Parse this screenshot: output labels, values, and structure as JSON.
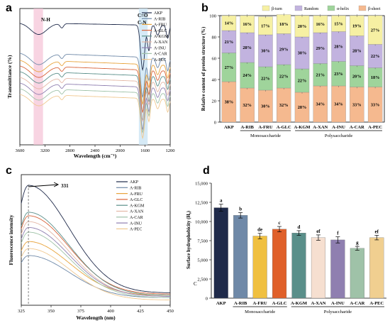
{
  "panels": {
    "a": "a",
    "b": "b",
    "c": "c",
    "d": "d"
  },
  "chart_data": [
    {
      "type": "line",
      "panel": "a",
      "xlabel": "Wavelength (cm⁻¹)",
      "ylabel": "Transmittance (%)",
      "xlim": [
        3600,
        1200
      ],
      "x_ticks": [
        "3600",
        "3200",
        "2800",
        "2400",
        "2000",
        "1600",
        "1200"
      ],
      "annotations": {
        "nh": "N-H",
        "co": "C=O",
        "cn": "C-N"
      },
      "series": [
        {
          "name": "AKP",
          "color": "#1f2a4a"
        },
        {
          "name": "A-RIB",
          "color": "#6f89a8"
        },
        {
          "name": "A-FRU",
          "color": "#e8a43c"
        },
        {
          "name": "A-GLC",
          "color": "#d8643a"
        },
        {
          "name": "A-KGM",
          "color": "#5a8f8a"
        },
        {
          "name": "A-XAN",
          "color": "#e4b8a6"
        },
        {
          "name": "A-INU",
          "color": "#8f7fb0"
        },
        {
          "name": "A-CAR",
          "color": "#9fc2a8"
        },
        {
          "name": "A-PEC",
          "color": "#f0c890"
        }
      ]
    },
    {
      "type": "bar",
      "panel": "b",
      "stacked": true,
      "ylabel": "Relative content of protein structure (%)",
      "ylim": [
        0,
        100
      ],
      "y_ticks": [
        "0",
        "20",
        "40",
        "60",
        "80",
        "100"
      ],
      "categories": [
        "AKP",
        "A-RIB",
        "A-FRU",
        "A-GLC",
        "A-KGM",
        "A-XAN",
        "A-INU",
        "A-CAR",
        "A-PEC"
      ],
      "groups": [
        {
          "label": "Monosaccharide",
          "from": 1,
          "to": 3
        },
        {
          "label": "Polysaccharide",
          "from": 4,
          "to": 8
        }
      ],
      "series": [
        {
          "name": "β-sheet",
          "color": "#f5b98f",
          "values": [
            38,
            32,
            30,
            32,
            28,
            34,
            34,
            33,
            33
          ],
          "labels": [
            "38%",
            "32%",
            "30%",
            "32%",
            "28%",
            "34%",
            "34%",
            "33%",
            "33%"
          ]
        },
        {
          "name": "α-helix",
          "color": "#9fd49b",
          "values": [
            27,
            24,
            22,
            22,
            22,
            21,
            23,
            20,
            18
          ],
          "labels": [
            "27%",
            "24%",
            "22%",
            "22%",
            "22%",
            "21%",
            "23%",
            "20%",
            "18%"
          ]
        },
        {
          "name": "Random",
          "color": "#c2b3df",
          "values": [
            21,
            28,
            30,
            29,
            30,
            29,
            28,
            28,
            22
          ],
          "labels": [
            "21%",
            "28%",
            "30%",
            "29%",
            "30%",
            "29%",
            "28%",
            "28%",
            "22%"
          ]
        },
        {
          "name": "β-turn",
          "color": "#f6f0a3",
          "values": [
            14,
            16,
            17,
            18,
            20,
            16,
            15,
            19,
            27
          ],
          "labels": [
            "14%",
            "16%",
            "17%",
            "18%",
            "20%",
            "16%",
            "15%",
            "19%",
            "27%"
          ]
        }
      ],
      "legend_order": [
        "β-turn",
        "Random",
        "α-helix",
        "β-sheet"
      ]
    },
    {
      "type": "line",
      "panel": "c",
      "xlabel": "Wavelength (nm)",
      "ylabel": "Fluorescence intensity",
      "xlim": [
        325,
        450
      ],
      "x_ticks": [
        "325",
        "350",
        "375",
        "400",
        "425",
        "450"
      ],
      "peak_label": "331",
      "peak_x": 331,
      "series": [
        {
          "name": "AKP",
          "color": "#1f2a4a",
          "peak": 1.0,
          "tail": 0.08
        },
        {
          "name": "A-RIB",
          "color": "#6f89a8",
          "peak": 0.4,
          "tail": 0.04
        },
        {
          "name": "A-FRU",
          "color": "#e8a43c",
          "peak": 0.52,
          "tail": 0.06
        },
        {
          "name": "A-GLC",
          "color": "#d8643a",
          "peak": 0.74,
          "tail": 0.07
        },
        {
          "name": "A-KGM",
          "color": "#5a8f8a",
          "peak": 0.77,
          "tail": 0.06
        },
        {
          "name": "A-XAN",
          "color": "#e4b8a6",
          "peak": 0.69,
          "tail": 0.05
        },
        {
          "name": "A-CAR",
          "color": "#9fc2a8",
          "peak": 0.6,
          "tail": 0.04
        },
        {
          "name": "A-INU",
          "color": "#8f7fb0",
          "peak": 0.64,
          "tail": 0.05
        },
        {
          "name": "A-PEC",
          "color": "#f0c890",
          "peak": 0.46,
          "tail": 0.02
        }
      ]
    },
    {
      "type": "bar",
      "panel": "d",
      "ylabel": "Surface hydrophobicity (H₀)",
      "ylim": [
        0,
        15000
      ],
      "y_ticks": [
        "0",
        "2,500",
        "5,000",
        "7,500",
        "10,000",
        "12,500",
        "15,000"
      ],
      "categories": [
        "AKP",
        "A-RIB",
        "A-FRU",
        "A-GLC",
        "A-KGM",
        "A-XAN",
        "A-INU",
        "A-CAR",
        "A-PEC"
      ],
      "values": [
        11800,
        10800,
        8100,
        9000,
        8500,
        7900,
        7600,
        6500,
        7900
      ],
      "errors": [
        450,
        350,
        350,
        350,
        300,
        350,
        400,
        250,
        300
      ],
      "letters": [
        "a",
        "b",
        "de",
        "c",
        "d",
        "ef",
        "f",
        "g",
        "ef"
      ],
      "colors": [
        "#1f2a4a",
        "#6f89a8",
        "#f0c040",
        "#e0602a",
        "#5a8f8a",
        "#f6dfd0",
        "#8f7fb0",
        "#9fc2a8",
        "#f0cf90"
      ],
      "groups": [
        {
          "label": "Monosaccharide",
          "from": 1,
          "to": 3
        },
        {
          "label": "Polysaccharide",
          "from": 4,
          "to": 8
        }
      ],
      "corner_mark": "C"
    }
  ]
}
